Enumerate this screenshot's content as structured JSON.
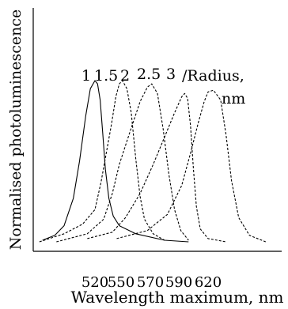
{
  "chart_data": {
    "type": "line",
    "title": "",
    "xlabel": "Wavelength maximum, nm",
    "ylabel": "Normalised photoluminescence",
    "x_ticks": [
      "520",
      "550",
      "570",
      "590",
      "620"
    ],
    "xlim": [
      480,
      660
    ],
    "ylim": [
      0,
      1.05
    ],
    "grid": false,
    "legend": "none",
    "curve_labels": [
      "1",
      "1.5",
      "2",
      "2.5",
      "3"
    ],
    "curve_label_suffix": "/Radius,",
    "curve_label_unit": "nm",
    "series": [
      {
        "name": "1",
        "style": "solid",
        "x": [
          486,
          494,
          500,
          506,
          510,
          514,
          517,
          520,
          523,
          526,
          529,
          532,
          536,
          541,
          548,
          560,
          580,
          600
        ],
        "y": [
          0.01,
          0.04,
          0.1,
          0.27,
          0.5,
          0.78,
          0.95,
          1.0,
          0.98,
          0.88,
          0.67,
          0.45,
          0.27,
          0.16,
          0.1,
          0.05,
          0.01,
          0.0
        ]
      },
      {
        "name": "1.5",
        "style": "dashed",
        "x": [
          484,
          500,
          512,
          520,
          527,
          533,
          539,
          544,
          548,
          551,
          554,
          557,
          560,
          563,
          566,
          572,
          580
        ],
        "y": [
          0.0,
          0.05,
          0.11,
          0.2,
          0.37,
          0.55,
          0.73,
          0.9,
          0.98,
          1.0,
          0.95,
          0.8,
          0.52,
          0.28,
          0.14,
          0.05,
          0.01
        ]
      },
      {
        "name": "2",
        "style": "dashed",
        "x": [
          495,
          515,
          530,
          540,
          548,
          556,
          563,
          568,
          571,
          575,
          579,
          583,
          587,
          592,
          600
        ],
        "y": [
          0.0,
          0.05,
          0.14,
          0.3,
          0.48,
          0.68,
          0.87,
          0.96,
          0.98,
          0.92,
          0.7,
          0.42,
          0.2,
          0.07,
          0.01
        ]
      },
      {
        "name": "2.5",
        "style": "dashed",
        "x": [
          515,
          540,
          553,
          563,
          572,
          580,
          587,
          593,
          596,
          599,
          602,
          605,
          608,
          612,
          620,
          630
        ],
        "y": [
          0.02,
          0.06,
          0.15,
          0.3,
          0.48,
          0.65,
          0.8,
          0.9,
          0.92,
          0.89,
          0.72,
          0.45,
          0.22,
          0.08,
          0.02,
          0.0
        ]
      },
      {
        "name": "3",
        "style": "dashed",
        "x": [
          545,
          568,
          582,
          593,
          602,
          610,
          616,
          620,
          623,
          627,
          630,
          633,
          637,
          643,
          652
        ],
        "y": [
          0.02,
          0.07,
          0.17,
          0.35,
          0.55,
          0.74,
          0.87,
          0.93,
          0.94,
          0.88,
          0.66,
          0.38,
          0.15,
          0.04,
          0.0
        ]
      }
    ]
  }
}
